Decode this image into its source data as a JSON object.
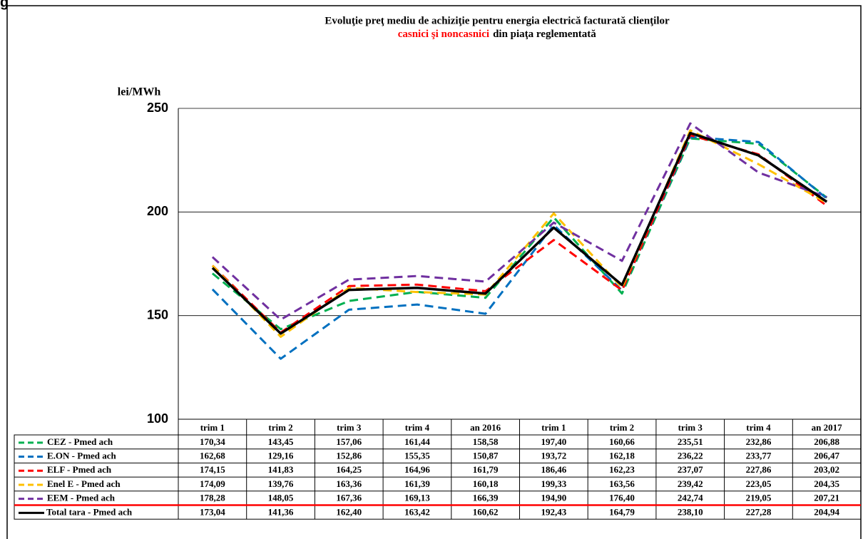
{
  "corner_text": "g",
  "chart_data": {
    "type": "line",
    "title": "Evoluţie preţ  mediu de achiziţie pentru energia electrică facturată clienţilor",
    "title_highlight": "casnici şi noncasnici",
    "title_rest": "din piaţa reglementată",
    "y_label": "lei/MWh",
    "categories": [
      "trim 1",
      "trim 2",
      "trim 3",
      "trim 4",
      "an 2016",
      "trim 1",
      "trim 2",
      "trim 3",
      "trim 4",
      "an 2017"
    ],
    "ylim": [
      100,
      250
    ],
    "yticks": [
      100,
      150,
      200,
      250
    ],
    "grid": true,
    "series": [
      {
        "name": "CEZ - Pmed ach",
        "color": "#00b050",
        "dash": true,
        "values": [
          170.34,
          143.45,
          157.06,
          161.44,
          158.58,
          197.4,
          160.66,
          235.51,
          232.86,
          206.88
        ],
        "value_labels": [
          "170,34",
          "143,45",
          "157,06",
          "161,44",
          "158,58",
          "197,40",
          "160,66",
          "235,51",
          "232,86",
          "206,88"
        ]
      },
      {
        "name": "E.ON - Pmed ach",
        "color": "#0070c0",
        "dash": true,
        "values": [
          162.68,
          129.16,
          152.86,
          155.35,
          150.87,
          193.72,
          162.18,
          236.22,
          233.77,
          206.47
        ],
        "value_labels": [
          "162,68",
          "129,16",
          "152,86",
          "155,35",
          "150,87",
          "193,72",
          "162,18",
          "236,22",
          "233,77",
          "206,47"
        ]
      },
      {
        "name": "ELF - Pmed ach",
        "color": "#ff0000",
        "dash": true,
        "values": [
          174.15,
          141.83,
          164.25,
          164.96,
          161.79,
          186.46,
          162.23,
          237.07,
          227.86,
          203.02
        ],
        "value_labels": [
          "174,15",
          "141,83",
          "164,25",
          "164,96",
          "161,79",
          "186,46",
          "162,23",
          "237,07",
          "227,86",
          "203,02"
        ]
      },
      {
        "name": "Enel E - Pmed ach",
        "color": "#ffc000",
        "dash": true,
        "values": [
          174.09,
          139.76,
          163.36,
          161.39,
          160.18,
          199.33,
          163.56,
          239.42,
          223.05,
          204.35
        ],
        "value_labels": [
          "174,09",
          "139,76",
          "163,36",
          "161,39",
          "160,18",
          "199,33",
          "163,56",
          "239,42",
          "223,05",
          "204,35"
        ]
      },
      {
        "name": "EEM - Pmed ach",
        "color": "#7030a0",
        "dash": true,
        "values": [
          178.28,
          148.05,
          167.36,
          169.13,
          166.39,
          194.9,
          176.4,
          242.74,
          219.05,
          207.21
        ],
        "value_labels": [
          "178,28",
          "148,05",
          "167,36",
          "169,13",
          "166,39",
          "194,90",
          "176,40",
          "242,74",
          "219,05",
          "207,21"
        ]
      },
      {
        "name": "Total tara - Pmed ach",
        "color": "#000000",
        "dash": false,
        "values": [
          173.04,
          141.36,
          162.4,
          163.42,
          160.62,
          192.43,
          164.79,
          238.1,
          227.28,
          204.94
        ],
        "value_labels": [
          "173,04",
          "141,36",
          "162,40",
          "163,42",
          "160,62",
          "192,43",
          "164,79",
          "238,10",
          "227,28",
          "204,94"
        ]
      }
    ]
  }
}
